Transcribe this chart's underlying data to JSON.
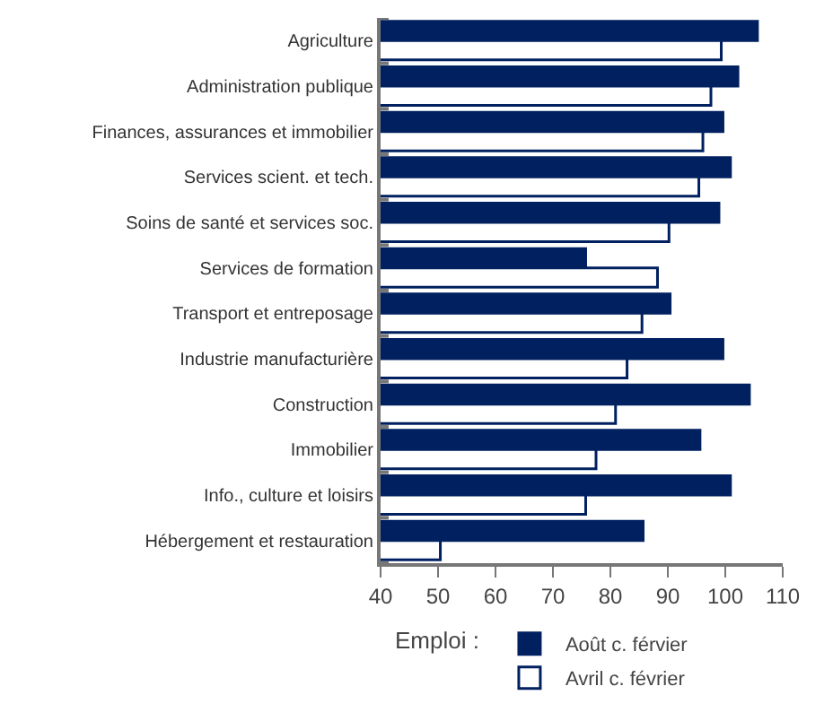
{
  "chart_data": {
    "type": "bar",
    "orientation": "horizontal",
    "categories": [
      "Agriculture",
      "Administration publique",
      "Finances, assurances et immobilier",
      "Services scient. et tech.",
      "Soins de santé et services soc.",
      "Services de formation",
      "Transport et entreposage",
      "Industrie manufacturière",
      "Construction",
      "Immobilier",
      "Info., culture et loisirs",
      "Hébergement et restauration"
    ],
    "series": [
      {
        "name": "Août c. férvier",
        "color": "#002060",
        "values": [
          105.6,
          102.2,
          99.6,
          100.9,
          98.9,
          75.7,
          90.4,
          99.6,
          104.2,
          95.6,
          100.9,
          85.7
        ]
      },
      {
        "name": "Avril c. février",
        "color": "#ffffff",
        "values": [
          99.3,
          97.5,
          96.1,
          95.4,
          90.2,
          88.2,
          85.5,
          82.9,
          80.9,
          77.5,
          75.7,
          50.4
        ]
      }
    ],
    "legend_title": "Emploi :",
    "xlim": [
      40,
      110
    ],
    "xticks": [
      40,
      50,
      60,
      70,
      80,
      90,
      100,
      110
    ],
    "legend": "bottom"
  }
}
